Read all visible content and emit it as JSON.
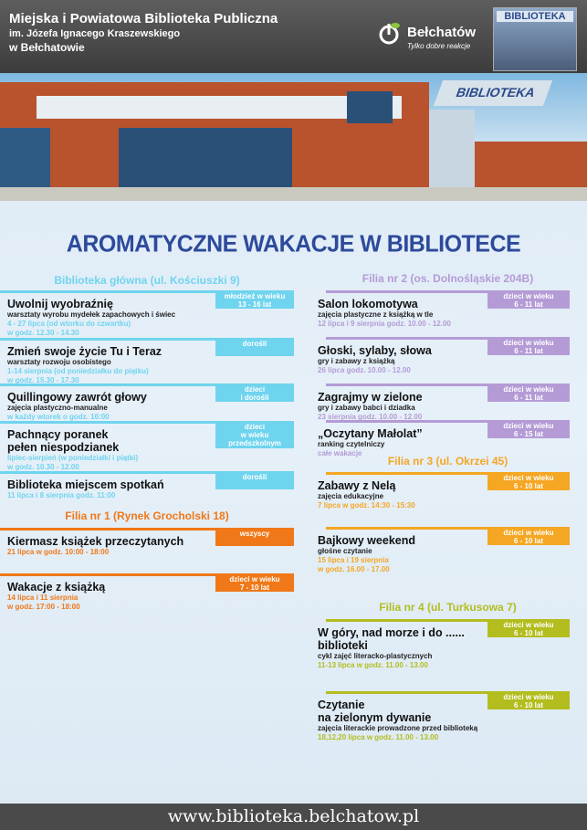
{
  "header": {
    "library_name": "Miejska i Powiatowa Biblioteka Publiczna",
    "patron": "im. Józefa Ignacego Kraszewskiego",
    "city": "w Bełchatowie",
    "city_logo": "Bełchatów",
    "city_slogan": "Tylko dobre reakcje",
    "sign": "BIBLIOTEKA"
  },
  "photo": {
    "building_sign": "BIBLIOTEKA"
  },
  "title": "AROMATYCZNE WAKACJE W BIBLIOTECE",
  "colors": {
    "main": "#6fd4ee",
    "filia1": "#f07818",
    "filia2": "#b49bd6",
    "filia3": "#f5a623",
    "filia4": "#b3bd1e",
    "title": "#2d4a9b"
  },
  "sections": [
    {
      "name": "Biblioteka główna (ul. Kościuszki 9)",
      "color": "#6fd4ee",
      "events": [
        {
          "title": "Uwolnij wyobraźnię",
          "subtitle": "warsztaty wyrobu mydełek zapachowych i świec",
          "date": "4 - 27 lipca (od wtorku do czwartku)\nw godz. 12.30 - 14.30",
          "audience": "młodzież w wieku\n13 - 16 lat"
        },
        {
          "title": "Zmień swoje życie Tu i Teraz",
          "subtitle": "warsztaty rozwoju osobistego",
          "date": "1-14 sierpnia (od poniedziałku do piątku)\nw godz. 15.30 - 17.30",
          "audience": "dorośli"
        },
        {
          "title": "Quillingowy zawrót głowy",
          "subtitle": "zajęcia plastyczno-manualne",
          "date": "w każdy wtorek o godz. 16:00",
          "audience": "dzieci\ni dorośli"
        },
        {
          "title": "Pachnący poranek\npełen niespodzianek",
          "subtitle": "",
          "date": "lipiec-sierpień (w poniedziałki i piątki)\nw godz. 10.30 - 12.00",
          "audience": "dzieci\nw wieku\nprzedszkolnym"
        },
        {
          "title": "Biblioteka miejscem spotkań",
          "subtitle": "",
          "date": "11 lipca i 8 sierpnia godz. 11:00",
          "audience": "dorośli"
        }
      ]
    },
    {
      "name": "Filia nr 1 (Rynek Grocholski 18)",
      "color": "#f07818",
      "events": [
        {
          "title": "Kiermasz książek przeczytanych",
          "subtitle": "",
          "date": "21 lipca w godz. 10:00 - 18:00",
          "audience": "wszyscy"
        },
        {
          "title": "Wakacje z książką",
          "subtitle": "",
          "date": "14 lipca i 11 sierpnia\nw godz. 17:00 - 18:00",
          "audience": "dzieci w wieku\n7 - 10 lat"
        }
      ]
    },
    {
      "name": "Filia nr 2 (os. Dolnośląskie 204B)",
      "color": "#b49bd6",
      "events": [
        {
          "title": "Salon lokomotywa",
          "subtitle": "zajęcia plastyczne z książką w tle",
          "date": "12 lipca i 9 sierpnia godz. 10.00 - 12.00",
          "audience": "dzieci w wieku\n6 - 11 lat"
        },
        {
          "title": "Głoski, sylaby, słowa",
          "subtitle": "gry i zabawy z książką",
          "date": "26 lipca godz. 10.00 - 12.00",
          "audience": "dzieci w wieku\n6 - 11 lat"
        },
        {
          "title": "Zagrajmy w zielone",
          "subtitle": "gry i zabawy babci i dziadka",
          "date": "23 sierpnia godz. 10.00 - 12.00",
          "audience": "dzieci w wieku\n6 - 11 lat"
        },
        {
          "title": "„Oczytany Małolat”",
          "subtitle": "ranking czytelniczy",
          "date": "całe wakacje",
          "audience": "dzieci w wieku\n6 - 15 lat"
        }
      ]
    },
    {
      "name": "Filia nr 3 (ul. Okrzei 45)",
      "color": "#f5a623",
      "events": [
        {
          "title": "Zabawy z Nelą",
          "subtitle": "zajęcia edukacyjne",
          "date": "7 lipca w godz. 14:30 - 15:30",
          "audience": "dzieci w wieku\n6 - 10 lat"
        },
        {
          "title": "Bajkowy weekend",
          "subtitle": "głośne czytanie",
          "date": "15 lipca i 19 sierpnia\nw godz. 16.00 - 17.00",
          "audience": "dzieci w wieku\n6 - 10 lat"
        }
      ]
    },
    {
      "name": "Filia nr 4 (ul. Turkusowa 7)",
      "color": "#b3bd1e",
      "events": [
        {
          "title": "W góry, nad morze i do ......\nbiblioteki",
          "subtitle": "cykl zajęć literacko-plastycznych",
          "date": "11-13 lipca w godz. 11.00 - 13.00",
          "audience": "dzieci w wieku\n6 - 10 lat"
        },
        {
          "title": "Czytanie\nna zielonym dywanie",
          "subtitle": "zajęcia literackie prowadzone przed biblioteką",
          "date": "18,12,20 lipca w godz. 11.00 - 13.00",
          "audience": "dzieci w wieku\n6 - 10 lat"
        }
      ]
    }
  ],
  "footer": {
    "url": "www.biblioteka.belchatow.pl"
  }
}
